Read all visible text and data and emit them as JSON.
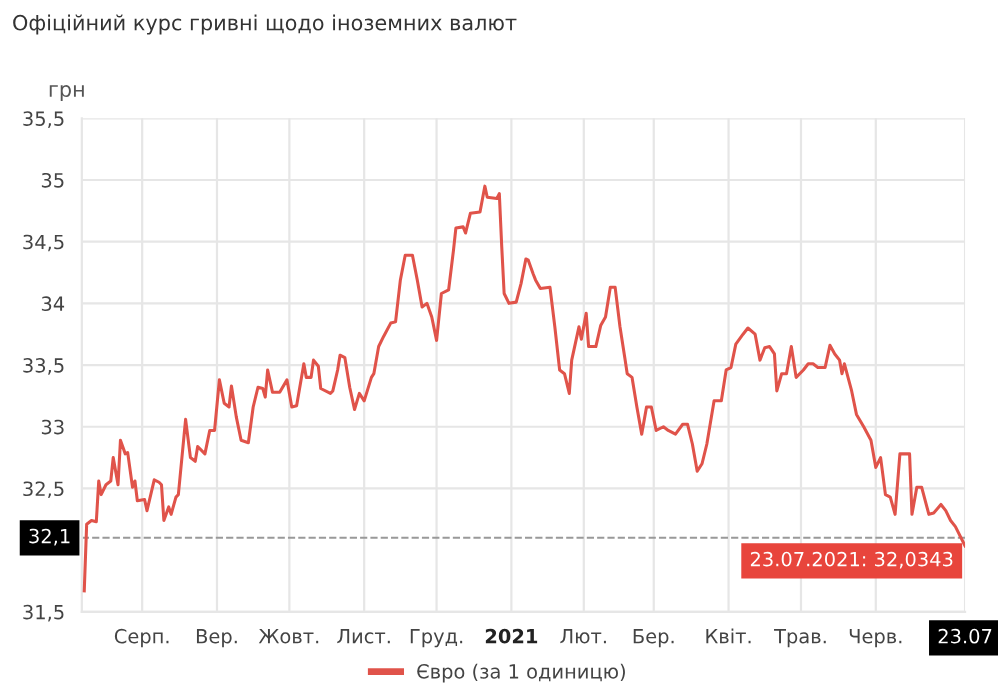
{
  "chart_data": {
    "type": "line",
    "title": "Офіційний курс гривні щодо іноземних валют",
    "ylabel": "грн",
    "x": [
      "2020-07-23",
      "2020-07-24",
      "2020-07-26",
      "2020-07-28",
      "2020-07-29",
      "2020-07-30",
      "2020-08-01",
      "2020-08-03",
      "2020-08-04",
      "2020-08-06",
      "2020-08-07",
      "2020-08-09",
      "2020-08-10",
      "2020-08-12",
      "2020-08-13",
      "2020-08-14",
      "2020-08-17",
      "2020-08-18",
      "2020-08-21",
      "2020-08-23",
      "2020-08-24",
      "2020-08-25",
      "2020-08-27",
      "2020-08-28",
      "2020-08-30",
      "2020-08-31",
      "2020-09-03",
      "2020-09-05",
      "2020-09-07",
      "2020-09-08",
      "2020-09-11",
      "2020-09-13",
      "2020-09-15",
      "2020-09-17",
      "2020-09-19",
      "2020-09-21",
      "2020-09-22",
      "2020-09-24",
      "2020-09-26",
      "2020-09-29",
      "2020-10-01",
      "2020-10-03",
      "2020-10-05",
      "2020-10-06",
      "2020-10-07",
      "2020-10-09",
      "2020-10-12",
      "2020-10-15",
      "2020-10-17",
      "2020-10-19",
      "2020-10-22",
      "2020-10-23",
      "2020-10-25",
      "2020-10-26",
      "2020-10-28",
      "2020-10-29",
      "2020-11-02",
      "2020-11-03",
      "2020-11-05",
      "2020-11-06",
      "2020-11-08",
      "2020-11-10",
      "2020-11-12",
      "2020-11-14",
      "2020-11-16",
      "2020-11-19",
      "2020-11-20",
      "2020-11-22",
      "2020-11-24",
      "2020-11-27",
      "2020-11-29",
      "2020-12-01",
      "2020-12-03",
      "2020-12-06",
      "2020-12-08",
      "2020-12-10",
      "2020-12-12",
      "2020-12-14",
      "2020-12-16",
      "2020-12-18",
      "2020-12-21",
      "2020-12-23",
      "2020-12-24",
      "2020-12-27",
      "2020-12-28",
      "2020-12-30",
      "2021-01-03",
      "2021-01-05",
      "2021-01-06",
      "2021-01-10",
      "2021-01-11",
      "2021-01-12",
      "2021-01-13",
      "2021-01-15",
      "2021-01-18",
      "2021-01-20",
      "2021-01-22",
      "2021-01-23",
      "2021-01-25",
      "2021-01-26",
      "2021-01-28",
      "2021-02-01",
      "2021-02-03",
      "2021-02-05",
      "2021-02-07",
      "2021-02-09",
      "2021-02-10",
      "2021-02-13",
      "2021-02-14",
      "2021-02-16",
      "2021-02-17",
      "2021-02-20",
      "2021-02-22",
      "2021-02-24",
      "2021-02-26",
      "2021-02-28",
      "2021-03-02",
      "2021-03-04",
      "2021-03-05",
      "2021-03-07",
      "2021-03-09",
      "2021-03-11",
      "2021-03-13",
      "2021-03-15",
      "2021-03-17",
      "2021-03-20",
      "2021-03-22",
      "2021-03-25",
      "2021-03-28",
      "2021-03-30",
      "2021-04-01",
      "2021-04-03",
      "2021-04-05",
      "2021-04-07",
      "2021-04-10",
      "2021-04-13",
      "2021-04-15",
      "2021-04-17",
      "2021-04-19",
      "2021-04-22",
      "2021-04-24",
      "2021-04-27",
      "2021-04-29",
      "2021-05-01",
      "2021-05-03",
      "2021-05-05",
      "2021-05-06",
      "2021-05-08",
      "2021-05-10",
      "2021-05-12",
      "2021-05-14",
      "2021-05-17",
      "2021-05-19",
      "2021-05-21",
      "2021-05-23",
      "2021-05-26",
      "2021-05-28",
      "2021-05-30",
      "2021-06-01",
      "2021-06-02",
      "2021-06-03",
      "2021-06-06",
      "2021-06-08",
      "2021-06-11",
      "2021-06-14",
      "2021-06-16",
      "2021-06-18",
      "2021-06-20",
      "2021-06-22",
      "2021-06-24",
      "2021-06-26",
      "2021-06-30",
      "2021-07-01",
      "2021-07-03",
      "2021-07-05",
      "2021-07-08",
      "2021-07-10",
      "2021-07-13",
      "2021-07-15",
      "2021-07-17",
      "2021-07-19",
      "2021-07-23"
    ],
    "series": [
      {
        "name": "Євро (за 1 одиницю)",
        "color": "#e0534a",
        "values": [
          31.67,
          32.21,
          32.24,
          32.23,
          32.56,
          32.45,
          32.53,
          32.56,
          32.75,
          32.53,
          32.89,
          32.78,
          32.79,
          32.51,
          32.56,
          32.4,
          32.41,
          32.32,
          32.57,
          32.55,
          32.53,
          32.24,
          32.35,
          32.29,
          32.43,
          32.45,
          33.06,
          32.75,
          32.72,
          32.84,
          32.78,
          32.97,
          32.97,
          33.38,
          33.19,
          33.16,
          33.33,
          33.08,
          32.89,
          32.87,
          33.16,
          33.32,
          33.31,
          33.24,
          33.46,
          33.28,
          33.28,
          33.38,
          33.16,
          33.17,
          33.51,
          33.4,
          33.4,
          33.54,
          33.49,
          33.31,
          33.27,
          33.29,
          33.46,
          33.58,
          33.56,
          33.32,
          33.14,
          33.27,
          33.21,
          33.4,
          33.43,
          33.65,
          33.73,
          33.84,
          33.85,
          34.19,
          34.39,
          34.39,
          34.19,
          33.97,
          34.0,
          33.89,
          33.7,
          34.08,
          34.11,
          34.43,
          34.61,
          34.62,
          34.57,
          34.73,
          34.74,
          34.95,
          34.86,
          34.85,
          34.89,
          34.46,
          34.08,
          34.0,
          34.01,
          34.16,
          34.36,
          34.35,
          34.24,
          34.19,
          34.12,
          34.13,
          33.81,
          33.46,
          33.43,
          33.27,
          33.54,
          33.81,
          33.71,
          33.92,
          33.65,
          33.65,
          33.82,
          33.89,
          34.13,
          34.13,
          33.81,
          33.56,
          33.43,
          33.4,
          33.16,
          32.94,
          33.16,
          33.16,
          32.97,
          33.0,
          32.97,
          32.94,
          33.02,
          33.02,
          32.86,
          32.64,
          32.7,
          32.86,
          33.21,
          33.21,
          33.46,
          33.48,
          33.67,
          33.75,
          33.8,
          33.75,
          33.54,
          33.64,
          33.65,
          33.59,
          33.29,
          33.43,
          33.43,
          33.65,
          33.4,
          33.46,
          33.51,
          33.51,
          33.48,
          33.48,
          33.66,
          33.59,
          33.54,
          33.43,
          33.51,
          33.29,
          33.1,
          33.0,
          32.89,
          32.67,
          32.75,
          32.45,
          32.43,
          32.29,
          32.78,
          32.78,
          32.29,
          32.51,
          32.51,
          32.29,
          32.3,
          32.37,
          32.32,
          32.24,
          32.19,
          32.0343
        ]
      }
    ],
    "xlim": [
      "2020-07-22",
      "2021-07-23"
    ],
    "xticks": [
      {
        "value": "2020-08-16",
        "label": "Серп."
      },
      {
        "value": "2020-09-16",
        "label": "Вер."
      },
      {
        "value": "2020-10-16",
        "label": "Жовт."
      },
      {
        "value": "2020-11-16",
        "label": "Лист."
      },
      {
        "value": "2020-12-16",
        "label": "Груд."
      },
      {
        "value": "2021-01-16",
        "label": "2021"
      },
      {
        "value": "2021-02-15",
        "label": "Лют."
      },
      {
        "value": "2021-03-16",
        "label": "Бер."
      },
      {
        "value": "2021-04-16",
        "label": "Квіт."
      },
      {
        "value": "2021-05-16",
        "label": "Трав."
      },
      {
        "value": "2021-06-16",
        "label": "Черв."
      },
      {
        "value": "2021-07-23",
        "label": "23.07"
      }
    ],
    "ylim": [
      31.5,
      35.5
    ],
    "yticks": [
      {
        "value": 31.5,
        "label": "31,5"
      },
      {
        "value": 32.5,
        "label": "32,5"
      },
      33,
      {
        "value": 33.5,
        "label": "33,5"
      },
      34,
      {
        "value": 34.5,
        "label": "34,5"
      },
      35,
      {
        "value": 35.5,
        "label": "35,5"
      }
    ],
    "ref_lines": [
      {
        "axis": "y",
        "value": 32.1,
        "label": "32,1",
        "color": "#999999",
        "line_style": "dashed"
      }
    ],
    "annotations": [
      {
        "text": "23.07.2021: 32,0343",
        "x": "2021-07-23",
        "y": 32.0343
      }
    ],
    "grid": true,
    "legend": "bottom",
    "marker": "none",
    "line_style": "solid"
  }
}
